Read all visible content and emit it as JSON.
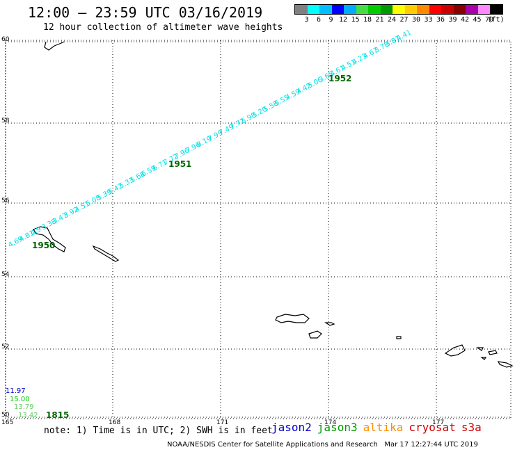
{
  "header": {
    "title": "12:00 — 23:59 UTC 03/16/2019",
    "subtitle": "12 hour collection of altimeter wave heights"
  },
  "legend": {
    "colors": [
      "#808080",
      "#00ffff",
      "#00bfff",
      "#0000ff",
      "#00aaff",
      "#44dd44",
      "#00cc00",
      "#009900",
      "#ffff00",
      "#ffcc00",
      "#ff8800",
      "#ff0000",
      "#cc0000",
      "#880000",
      "#aa00aa",
      "#ff88ff",
      "#000000"
    ],
    "labels": [
      "3",
      "6",
      "9",
      "12",
      "15",
      "18",
      "21",
      "24",
      "27",
      "30",
      "33",
      "36",
      "39",
      "42",
      "45",
      "70",
      "(ft)"
    ]
  },
  "axes": {
    "lat_labels": [
      "60",
      "58",
      "56",
      "54",
      "52",
      "50"
    ],
    "lon_labels": [
      "165",
      "168",
      "171",
      "174",
      "177"
    ]
  },
  "track": {
    "color": "#00e0e8",
    "values": [
      "4.69",
      "4.81",
      "4.9",
      "3.38",
      "3.47",
      "3.92",
      "4.51",
      "5.08",
      "5.39",
      "5.42",
      "5.33",
      "5.68",
      "6.59",
      "6.71",
      "7.72",
      "7.96",
      "7.96",
      "8.19",
      "7.99",
      "7.49",
      "7.72",
      "5.98",
      "5.20",
      "5.58",
      "5.55",
      "4.59",
      "4.42",
      "5.06",
      "3.65",
      "4.61",
      "4.51",
      "4.23",
      "4.67",
      "3.78",
      "3.87",
      "4.41"
    ],
    "times": [
      "1950",
      "1951",
      "1952"
    ]
  },
  "other_obs": [
    {
      "value": "11.97",
      "color": "#0000cc"
    },
    {
      "value": "15.00",
      "color": "#00cc00"
    },
    {
      "value": "13.79",
      "color": "#66cc66"
    },
    {
      "value": "13.42",
      "color": "#66cc66"
    }
  ],
  "other_time": {
    "value": "1815",
    "color": "#ff8c00"
  },
  "footer": {
    "note": "note: 1) Time is in UTC; 2) SWH is in feet",
    "credit": "NOAA/NESDIS Center for Satellite Applications and Research   Mar 17 12:27:44 UTC 2019",
    "satellites": [
      {
        "name": "jason2",
        "color": "#0000cc"
      },
      {
        "name": "jason3",
        "color": "#009900"
      },
      {
        "name": "altika",
        "color": "#ff8c00"
      },
      {
        "name": "cryosat",
        "color": "#cc0000"
      },
      {
        "name": "s3a",
        "color": "#cc0000"
      }
    ]
  }
}
